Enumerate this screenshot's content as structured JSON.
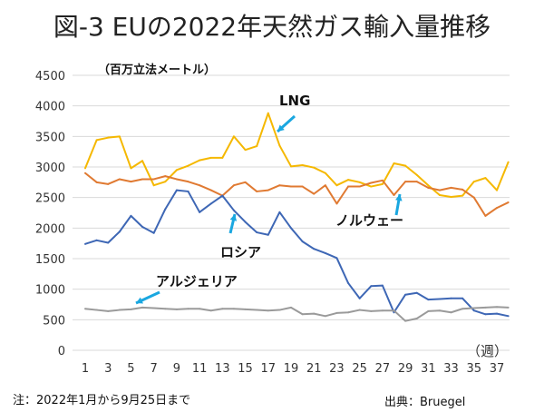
{
  "chart_data": {
    "type": "line",
    "title": "図-3 EUの2022年天然ガス輸入量推移",
    "ylabel": "（百万立法メートル）",
    "xlabel": "（週）",
    "ylim": [
      0,
      4500
    ],
    "yticks": [
      0,
      500,
      1000,
      1500,
      2000,
      2500,
      3000,
      3500,
      4000,
      4500
    ],
    "xticks": [
      1,
      3,
      5,
      7,
      9,
      11,
      13,
      15,
      17,
      19,
      21,
      23,
      25,
      27,
      29,
      31,
      33,
      35,
      37
    ],
    "grid": true,
    "x": [
      1,
      2,
      3,
      4,
      5,
      6,
      7,
      8,
      9,
      10,
      11,
      12,
      13,
      14,
      15,
      16,
      17,
      18,
      19,
      20,
      21,
      22,
      23,
      24,
      25,
      26,
      27,
      28,
      29,
      30,
      31,
      32,
      33,
      34,
      35,
      36,
      37,
      38
    ],
    "series": [
      {
        "name": "LNG",
        "color": "#F5B800",
        "values": [
          2980,
          3440,
          3480,
          3500,
          2980,
          3100,
          2700,
          2760,
          2950,
          3020,
          3110,
          3150,
          3150,
          3500,
          3280,
          3340,
          3880,
          3350,
          3010,
          3030,
          2990,
          2900,
          2700,
          2790,
          2750,
          2680,
          2720,
          3060,
          3020,
          2870,
          2700,
          2540,
          2510,
          2530,
          2760,
          2820,
          2620,
          3080
        ]
      },
      {
        "name": "ノルウェー",
        "color": "#E07A32",
        "values": [
          2900,
          2750,
          2720,
          2800,
          2760,
          2800,
          2800,
          2850,
          2800,
          2760,
          2700,
          2620,
          2530,
          2700,
          2750,
          2600,
          2620,
          2700,
          2680,
          2680,
          2560,
          2700,
          2400,
          2680,
          2680,
          2740,
          2780,
          2540,
          2760,
          2760,
          2660,
          2620,
          2660,
          2630,
          2500,
          2200,
          2330,
          2420
        ]
      },
      {
        "name": "ロシア",
        "color": "#3E67B5",
        "values": [
          1740,
          1800,
          1760,
          1940,
          2200,
          2020,
          1920,
          2310,
          2620,
          2600,
          2260,
          2400,
          2530,
          2290,
          2100,
          1930,
          1890,
          2260,
          2000,
          1780,
          1660,
          1590,
          1510,
          1100,
          850,
          1050,
          1060,
          620,
          910,
          940,
          830,
          840,
          850,
          850,
          650,
          590,
          600,
          560
        ]
      },
      {
        "name": "アルジェリア",
        "color": "#9A9A9A",
        "values": [
          680,
          660,
          640,
          660,
          670,
          700,
          690,
          680,
          670,
          680,
          680,
          650,
          680,
          680,
          670,
          660,
          650,
          660,
          700,
          590,
          600,
          560,
          610,
          620,
          660,
          640,
          650,
          650,
          480,
          520,
          640,
          650,
          620,
          680,
          690,
          700,
          710,
          700
        ]
      }
    ]
  },
  "note": "注：2022年1月から9月25日まで",
  "source": "出典：Bruegel",
  "arrow_color": "#1AA7E0"
}
